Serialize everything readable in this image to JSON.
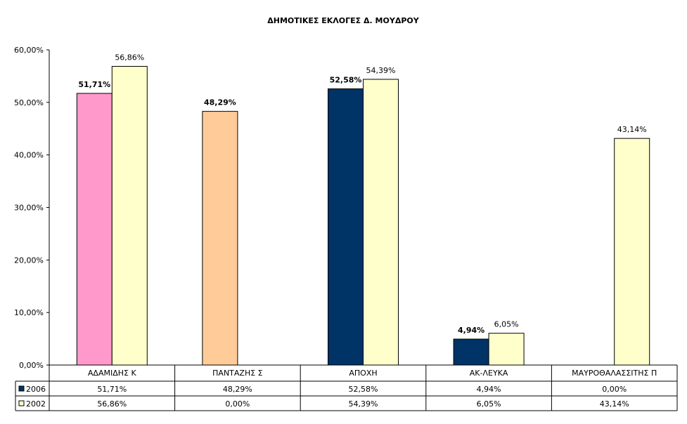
{
  "chart_data": {
    "type": "bar",
    "title": "ΔΗΜΟΤΙΚΕΣ ΕΚΛΟΓΕΣ Δ. ΜΟΥΔΡΟΥ",
    "xlabel": "",
    "ylabel": "",
    "ylim": [
      0,
      60
    ],
    "yticks": [
      "0,00%",
      "10,00%",
      "20,00%",
      "30,00%",
      "40,00%",
      "50,00%",
      "60,00%"
    ],
    "categories": [
      "ΑΔΑΜΙΔΗΣ Κ",
      "ΠΑΝΤΑΖΗΣ Σ",
      "ΑΠΟΧΗ",
      "ΑΚ-ΛΕΥΚΑ",
      "ΜΑΥΡΟΘΑΛΑΣΣΙΤΗΣ Π"
    ],
    "grid": false,
    "legend": "data-table",
    "series": [
      {
        "name": "2006",
        "values": [
          51.71,
          48.29,
          52.58,
          4.94,
          0.0
        ],
        "labels": [
          "51,71%",
          "48,29%",
          "52,58%",
          "4,94%",
          "0,00%"
        ],
        "bar_colors": [
          "#ff99cc",
          "#ffcc99",
          "#003366",
          "#003366",
          "#003366"
        ],
        "legend_color": "#003366"
      },
      {
        "name": "2002",
        "values": [
          56.86,
          0.0,
          54.39,
          6.05,
          43.14
        ],
        "labels": [
          "56,86%",
          "0,00%",
          "54,39%",
          "6,05%",
          "43,14%"
        ],
        "bar_colors": [
          "#ffffcc",
          "#ffffcc",
          "#ffffcc",
          "#ffffcc",
          "#ffffcc"
        ],
        "legend_color": "#ffffcc"
      }
    ]
  }
}
